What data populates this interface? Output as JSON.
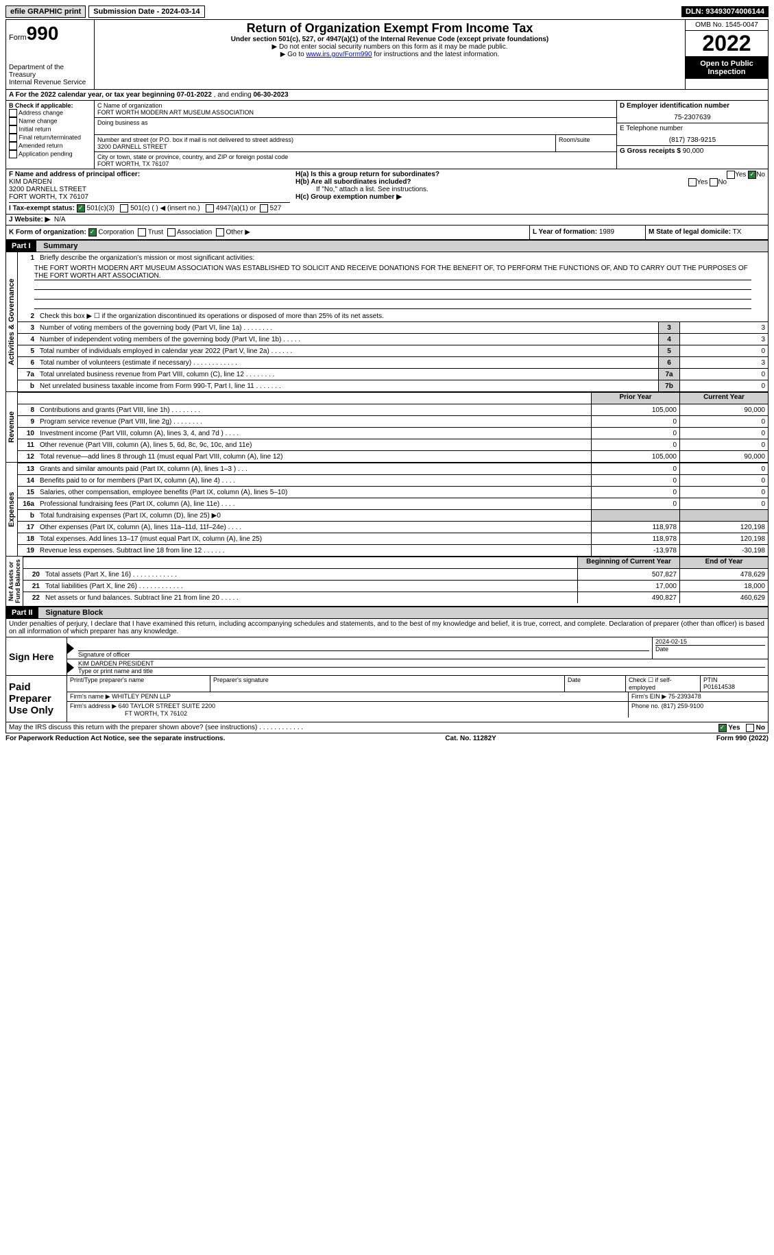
{
  "topbar": {
    "efile": "efile GRAPHIC print",
    "submission": "Submission Date - 2024-03-14",
    "dln": "DLN: 93493074006144"
  },
  "header": {
    "form_label": "Form",
    "form_num": "990",
    "dept": "Department of the Treasury",
    "irs": "Internal Revenue Service",
    "title": "Return of Organization Exempt From Income Tax",
    "subtitle": "Under section 501(c), 527, or 4947(a)(1) of the Internal Revenue Code (except private foundations)",
    "note1": "▶ Do not enter social security numbers on this form as it may be made public.",
    "note2_pre": "▶ Go to ",
    "note2_link": "www.irs.gov/Form990",
    "note2_post": " for instructions and the latest information.",
    "omb": "OMB No. 1545-0047",
    "year": "2022",
    "open": "Open to Public Inspection"
  },
  "a": {
    "text_pre": "A For the 2022 calendar year, or tax year beginning ",
    "begin": "07-01-2022",
    "mid": "    , and ending ",
    "end": "06-30-2023"
  },
  "b": {
    "label": "B Check if applicable:",
    "opts": [
      "Address change",
      "Name change",
      "Initial return",
      "Final return/terminated",
      "Amended return",
      "Application pending"
    ]
  },
  "c": {
    "name_label": "C Name of organization",
    "name": "FORT WORTH MODERN ART MUSEUM ASSOCIATION",
    "dba_label": "Doing business as",
    "street_label": "Number and street (or P.O. box if mail is not delivered to street address)",
    "room_label": "Room/suite",
    "street": "3200 DARNELL STREET",
    "city_label": "City or town, state or province, country, and ZIP or foreign postal code",
    "city": "FORT WORTH, TX  76107"
  },
  "d": {
    "label": "D Employer identification number",
    "ein": "75-2307639",
    "e_label": "E Telephone number",
    "phone": "(817) 738-9215",
    "g_label": "G Gross receipts $",
    "gross": "90,000"
  },
  "f": {
    "label": "F  Name and address of principal officer:",
    "name": "KIM DARDEN",
    "addr1": "3200 DARNELL STREET",
    "addr2": "FORT WORTH, TX  76107"
  },
  "h": {
    "ha": "H(a)  Is this a group return for subordinates?",
    "hb": "H(b)  Are all subordinates included?",
    "hb_note": "If \"No,\" attach a list. See instructions.",
    "hc": "H(c)  Group exemption number ▶"
  },
  "i": {
    "label": "I    Tax-exempt status:",
    "o1": "501(c)(3)",
    "o2": "501(c) (   ) ◀ (insert no.)",
    "o3": "4947(a)(1) or",
    "o4": "527"
  },
  "j": {
    "label": "J    Website: ▶",
    "val": "N/A"
  },
  "k": {
    "label": "K Form of organization:",
    "o1": "Corporation",
    "o2": "Trust",
    "o3": "Association",
    "o4": "Other ▶"
  },
  "l": {
    "label": "L Year of formation:",
    "val": "1989"
  },
  "m": {
    "label": "M State of legal domicile:",
    "val": "TX"
  },
  "part1": {
    "header": "Part I",
    "title": "Summary",
    "q1": "Briefly describe the organization's mission or most significant activities:",
    "mission": "THE FORT WORTH MODERN ART MUSEUM ASSOCIATION WAS ESTABLISHED TO SOLICIT AND RECEIVE DONATIONS FOR THE BENEFIT OF, TO PERFORM THE FUNCTIONS OF, AND TO CARRY OUT THE PURPOSES OF THE FORT WORTH ART ASSOCIATION.",
    "q2": "Check this box ▶ ☐  if the organization discontinued its operations or disposed of more than 25% of its net assets.",
    "rows_ag": [
      {
        "n": "3",
        "d": "Number of voting members of the governing body (Part VI, line 1a)   .    .    .    .    .    .    .    .",
        "b": "3",
        "v": "3"
      },
      {
        "n": "4",
        "d": "Number of independent voting members of the governing body (Part VI, line 1b)   .    .    .    .    .",
        "b": "4",
        "v": "3"
      },
      {
        "n": "5",
        "d": "Total number of individuals employed in calendar year 2022 (Part V, line 2a)   .    .    .    .    .    .",
        "b": "5",
        "v": "0"
      },
      {
        "n": "6",
        "d": "Total number of volunteers (estimate if necessary)    .    .    .    .    .    .    .    .    .    .    .    .",
        "b": "6",
        "v": "3"
      },
      {
        "n": "7a",
        "d": "Total unrelated business revenue from Part VIII, column (C), line 12   .    .    .    .    .    .    .    .",
        "b": "7a",
        "v": "0"
      },
      {
        "n": "b",
        "d": "Net unrelated business taxable income from Form 990-T, Part I, line 11   .    .    .    .    .    .    .",
        "b": "7b",
        "v": "0"
      }
    ],
    "py": "Prior Year",
    "cy": "Current Year",
    "rev": [
      {
        "n": "8",
        "d": "Contributions and grants (Part VIII, line 1h)    .    .    .    .    .    .    .    .",
        "p": "105,000",
        "c": "90,000"
      },
      {
        "n": "9",
        "d": "Program service revenue (Part VIII, line 2g)    .    .    .    .    .    .    .    .",
        "p": "0",
        "c": "0"
      },
      {
        "n": "10",
        "d": "Investment income (Part VIII, column (A), lines 3, 4, and 7d )    .    .    .    .",
        "p": "0",
        "c": "0"
      },
      {
        "n": "11",
        "d": "Other revenue (Part VIII, column (A), lines 5, 6d, 8c, 9c, 10c, and 11e)",
        "p": "0",
        "c": "0"
      },
      {
        "n": "12",
        "d": "Total revenue—add lines 8 through 11 (must equal Part VIII, column (A), line 12)",
        "p": "105,000",
        "c": "90,000"
      }
    ],
    "exp": [
      {
        "n": "13",
        "d": "Grants and similar amounts paid (Part IX, column (A), lines 1–3 )   .    .    .",
        "p": "0",
        "c": "0"
      },
      {
        "n": "14",
        "d": "Benefits paid to or for members (Part IX, column (A), line 4)   .    .    .    .",
        "p": "0",
        "c": "0"
      },
      {
        "n": "15",
        "d": "Salaries, other compensation, employee benefits (Part IX, column (A), lines 5–10)",
        "p": "0",
        "c": "0"
      },
      {
        "n": "16a",
        "d": "Professional fundraising fees (Part IX, column (A), line 11e)    .    .    .    .",
        "p": "0",
        "c": "0"
      },
      {
        "n": "b",
        "d": "Total fundraising expenses (Part IX, column (D), line 25) ▶0",
        "p": "gray",
        "c": "gray"
      },
      {
        "n": "17",
        "d": "Other expenses (Part IX, column (A), lines 11a–11d, 11f–24e)    .    .    .    .",
        "p": "118,978",
        "c": "120,198"
      },
      {
        "n": "18",
        "d": "Total expenses. Add lines 13–17 (must equal Part IX, column (A), line 25)",
        "p": "118,978",
        "c": "120,198"
      },
      {
        "n": "19",
        "d": "Revenue less expenses. Subtract line 18 from line 12   .    .    .    .    .    .",
        "p": "-13,978",
        "c": "-30,198"
      }
    ],
    "bcy": "Beginning of Current Year",
    "eoy": "End of Year",
    "na": [
      {
        "n": "20",
        "d": "Total assets (Part X, line 16)   .    .    .    .    .    .    .    .    .    .    .    .",
        "p": "507,827",
        "c": "478,629"
      },
      {
        "n": "21",
        "d": "Total liabilities (Part X, line 26)   .    .    .    .    .    .    .    .    .    .    .    .",
        "p": "17,000",
        "c": "18,000"
      },
      {
        "n": "22",
        "d": "Net assets or fund balances. Subtract line 21 from line 20   .    .    .    .    .",
        "p": "490,827",
        "c": "460,629"
      }
    ]
  },
  "part2": {
    "header": "Part II",
    "title": "Signature Block",
    "decl": "Under penalties of perjury, I declare that I have examined this return, including accompanying schedules and statements, and to the best of my knowledge and belief, it is true, correct, and complete. Declaration of preparer (other than officer) is based on all information of which preparer has any knowledge.",
    "sign_here": "Sign Here",
    "sig_officer": "Signature of officer",
    "sig_date": "2024-02-15",
    "date_label": "Date",
    "officer_name": "KIM DARDEN  PRESIDENT",
    "type_label": "Type or print name and title",
    "paid": "Paid Preparer Use Only",
    "prep_name_label": "Print/Type preparer's name",
    "prep_sig_label": "Preparer's signature",
    "check_if": "Check ☐ if self-employed",
    "ptin_label": "PTIN",
    "ptin": "P01614538",
    "firm_name_label": "Firm's name      ▶",
    "firm_name": "WHITLEY PENN LLP",
    "firm_ein_label": "Firm's EIN ▶",
    "firm_ein": "75-2393478",
    "firm_addr_label": "Firm's address ▶",
    "firm_addr1": "640 TAYLOR STREET SUITE 2200",
    "firm_addr2": "FT WORTH, TX  76102",
    "phone_label": "Phone no.",
    "phone": "(817) 259-9100",
    "discuss": "May the IRS discuss this return with the preparer shown above? (see instructions)    .    .    .    .    .    .    .    .    .    .    .    .",
    "yes": "Yes",
    "no": "No"
  },
  "footer": {
    "left": "For Paperwork Reduction Act Notice, see the separate instructions.",
    "center": "Cat. No. 11282Y",
    "right": "Form 990 (2022)"
  }
}
